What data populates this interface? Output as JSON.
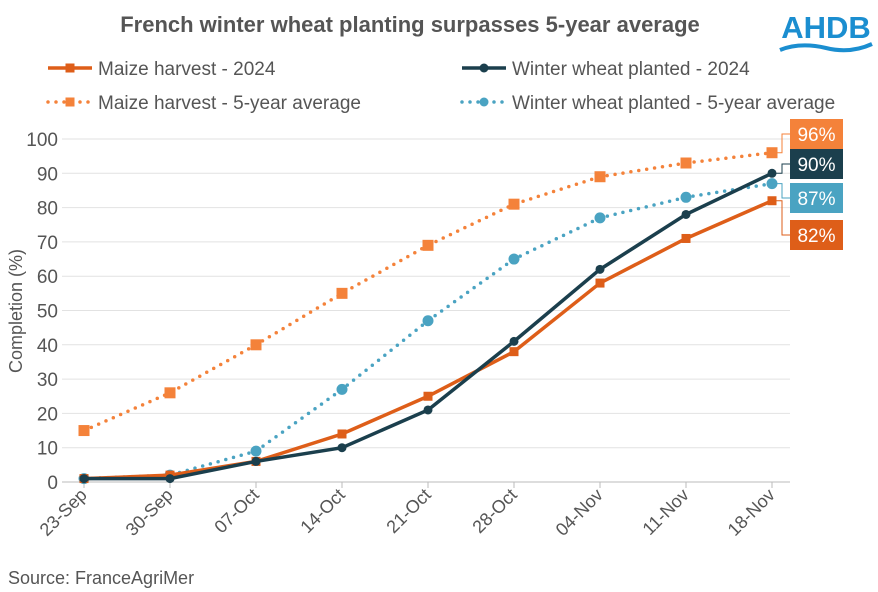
{
  "logo_text": "AHDB",
  "source": "Source: FranceAgriMer",
  "chart_data": {
    "type": "line",
    "title": "French winter wheat planting surpasses 5-year average",
    "xlabel": "",
    "ylabel": "Completion (%)",
    "ylim": [
      0,
      100
    ],
    "yticks": [
      0,
      10,
      20,
      30,
      40,
      50,
      60,
      70,
      80,
      90,
      100
    ],
    "grid": true,
    "legend_position": "top",
    "categories": [
      "23-Sep",
      "30-Sep",
      "07-Oct",
      "14-Oct",
      "21-Oct",
      "28-Oct",
      "04-Nov",
      "11-Nov",
      "18-Nov"
    ],
    "series": [
      {
        "name": "Maize harvest - 2024",
        "style": "solid",
        "marker": "square",
        "color": "#DE5E19",
        "values": [
          1,
          2,
          6,
          14,
          25,
          38,
          58,
          71,
          82
        ],
        "end_label": "82%"
      },
      {
        "name": "Winter wheat planted - 2024",
        "style": "solid",
        "marker": "circle",
        "color": "#1B3F4D",
        "values": [
          1,
          1,
          6,
          10,
          21,
          41,
          62,
          78,
          90
        ],
        "end_label": "90%"
      },
      {
        "name": "Maize harvest - 5-year average",
        "style": "dotted",
        "marker": "square",
        "color": "#F4823A",
        "values": [
          15,
          26,
          40,
          55,
          69,
          81,
          89,
          93,
          96
        ],
        "end_label": "96%"
      },
      {
        "name": "Winter wheat planted - 5-year average",
        "style": "dotted",
        "marker": "circle",
        "color": "#4AA3C2",
        "values": [
          1,
          2,
          9,
          27,
          47,
          65,
          77,
          83,
          87
        ],
        "end_label": "87%"
      }
    ]
  }
}
